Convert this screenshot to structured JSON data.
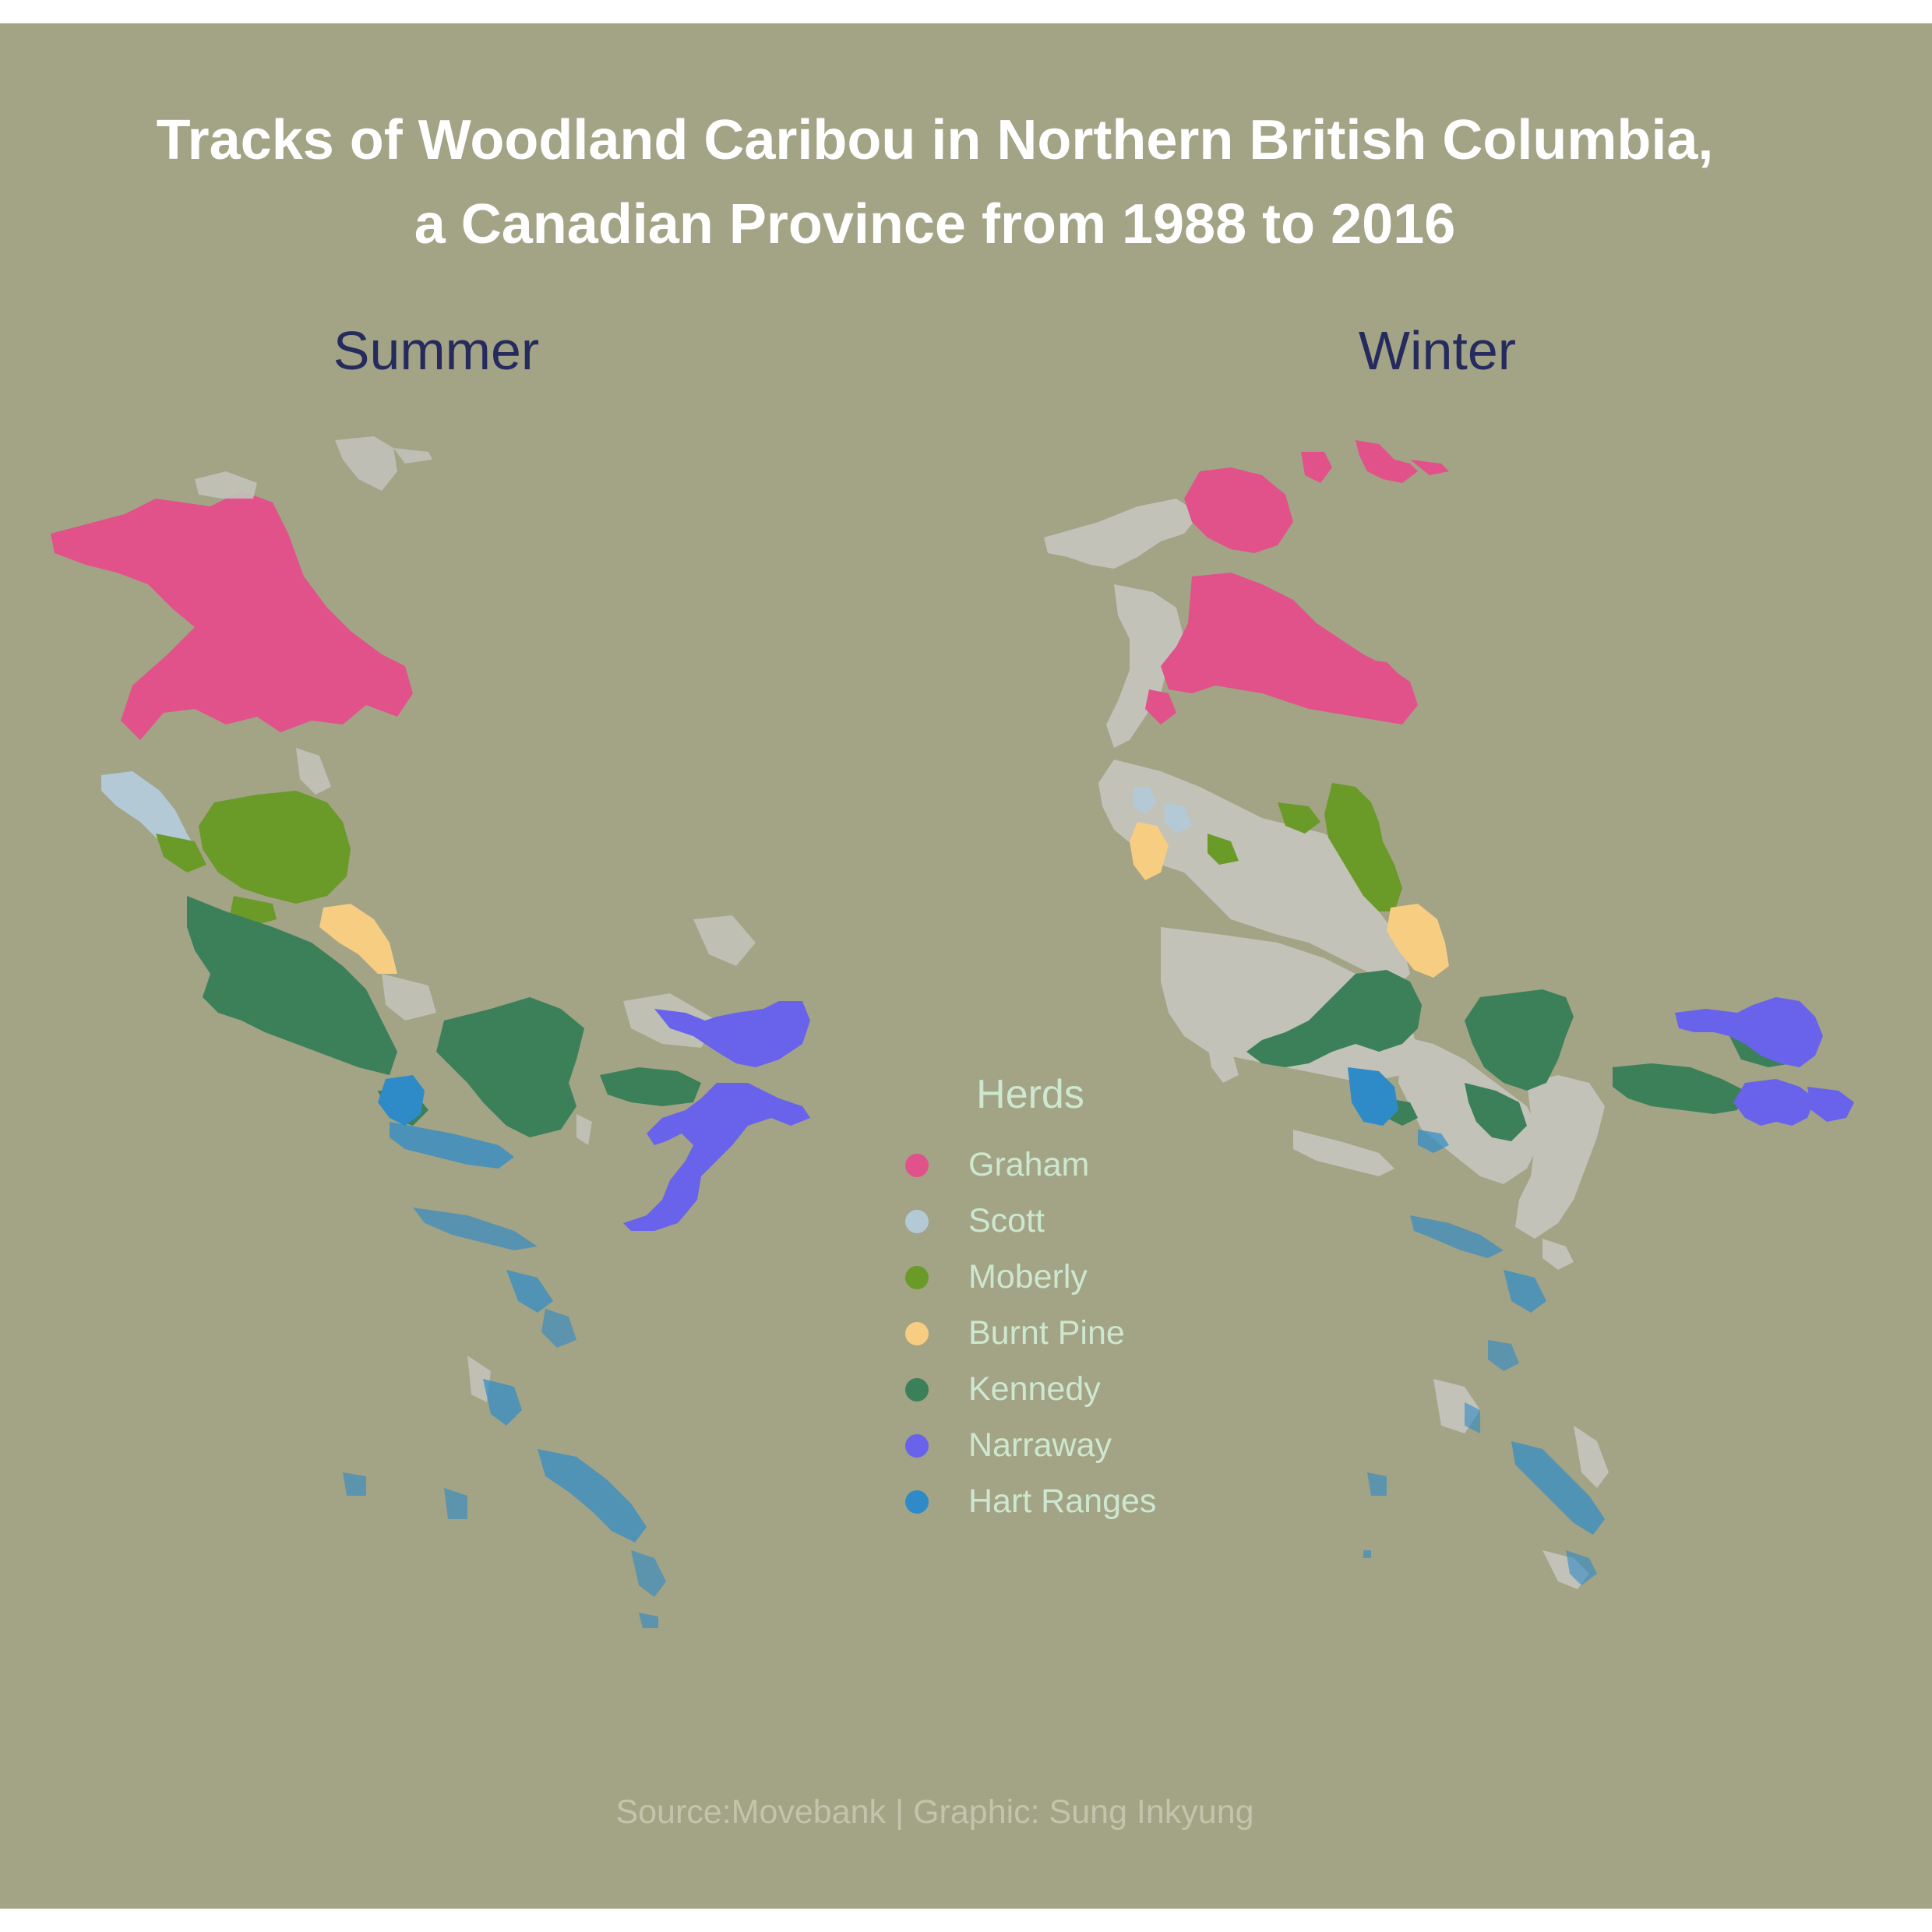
{
  "title": {
    "line1": "Tracks of Woodland Caribou in Northern British Columbia,",
    "line2": "a Canadian Province from 1988 to 2016"
  },
  "facets": [
    "Summer",
    "Winter"
  ],
  "legend": {
    "title": "Herds",
    "items": [
      {
        "label": "Graham",
        "color": "#e1528a"
      },
      {
        "label": "Scott",
        "color": "#b3cad6"
      },
      {
        "label": "Moberly",
        "color": "#6a9a28"
      },
      {
        "label": "Burnt Pine",
        "color": "#f7cd82"
      },
      {
        "label": "Kennedy",
        "color": "#3b8059"
      },
      {
        "label": "Narraway",
        "color": "#6962ea"
      },
      {
        "label": "Hart Ranges",
        "color": "#2e8bc8"
      }
    ]
  },
  "other_tracks_color": "#c2c2b9",
  "source": "Source:Movebank | Graphic: Sung Inkyung"
}
